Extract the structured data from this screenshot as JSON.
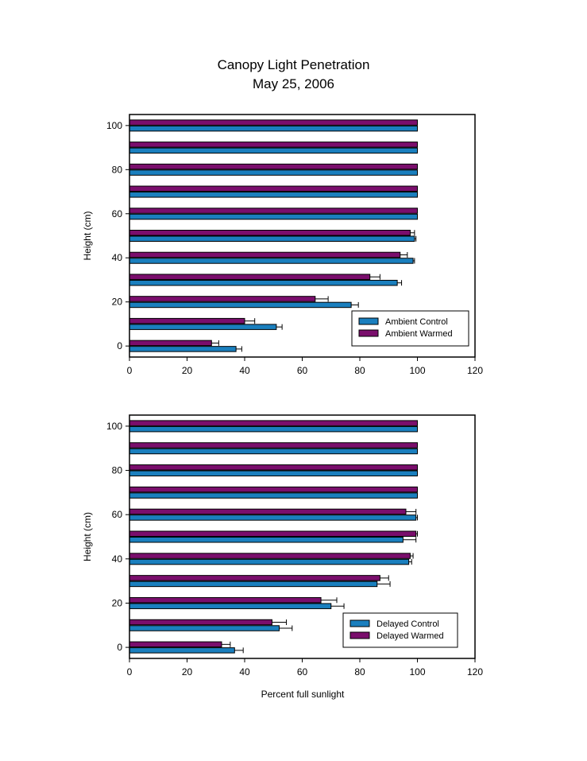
{
  "title": "Canopy Light Penetration",
  "subtitle": "May 25, 2006",
  "colors": {
    "control": "#1a7fbe",
    "warmed": "#7a0e6c"
  },
  "chart_data": [
    {
      "type": "bar",
      "orientation": "horizontal",
      "ylabel": "Height (cm)",
      "xlabel": "",
      "xlim": [
        0,
        120
      ],
      "xticks": [
        0,
        20,
        40,
        60,
        80,
        100,
        120
      ],
      "ylim": [
        -5,
        105
      ],
      "yticks": [
        0,
        20,
        40,
        60,
        80,
        100
      ],
      "heights": [
        0,
        10,
        20,
        30,
        40,
        50,
        60,
        70,
        80,
        90,
        100
      ],
      "legend_position": "bottom-right",
      "series": [
        {
          "name": "Ambient Control",
          "values": [
            37,
            51,
            77,
            93,
            98.5,
            99,
            100,
            100,
            100,
            100,
            100
          ],
          "errors": [
            2,
            2,
            2.5,
            1.5,
            0.5,
            0.5,
            0,
            0,
            0,
            0,
            0
          ]
        },
        {
          "name": "Ambient Warmed",
          "values": [
            28.5,
            40,
            64.5,
            83.5,
            94,
            97.5,
            100,
            100,
            100,
            100,
            100
          ],
          "errors": [
            2.5,
            3.5,
            4.5,
            3.5,
            2.5,
            1.5,
            0,
            0,
            0,
            0,
            0
          ]
        }
      ]
    },
    {
      "type": "bar",
      "orientation": "horizontal",
      "ylabel": "Height (cm)",
      "xlabel": "Percent full sunlight",
      "xlim": [
        0,
        120
      ],
      "xticks": [
        0,
        20,
        40,
        60,
        80,
        100,
        120
      ],
      "ylim": [
        -5,
        105
      ],
      "yticks": [
        0,
        20,
        40,
        60,
        80,
        100
      ],
      "heights": [
        0,
        10,
        20,
        30,
        40,
        50,
        60,
        70,
        80,
        90,
        100
      ],
      "legend_position": "bottom-right",
      "series": [
        {
          "name": "Delayed Control",
          "values": [
            36.5,
            52,
            70,
            86,
            97,
            95,
            99.5,
            100,
            100,
            100,
            100
          ],
          "errors": [
            3,
            4.5,
            4.5,
            4.5,
            1,
            4.5,
            0.5,
            0,
            0,
            0,
            0
          ]
        },
        {
          "name": "Delayed Warmed",
          "values": [
            32,
            49.5,
            66.5,
            87,
            97.5,
            99.5,
            96,
            100,
            100,
            100,
            100
          ],
          "errors": [
            3,
            5,
            5.5,
            3,
            1,
            0.5,
            3.5,
            0,
            0,
            0,
            0
          ]
        }
      ]
    }
  ]
}
